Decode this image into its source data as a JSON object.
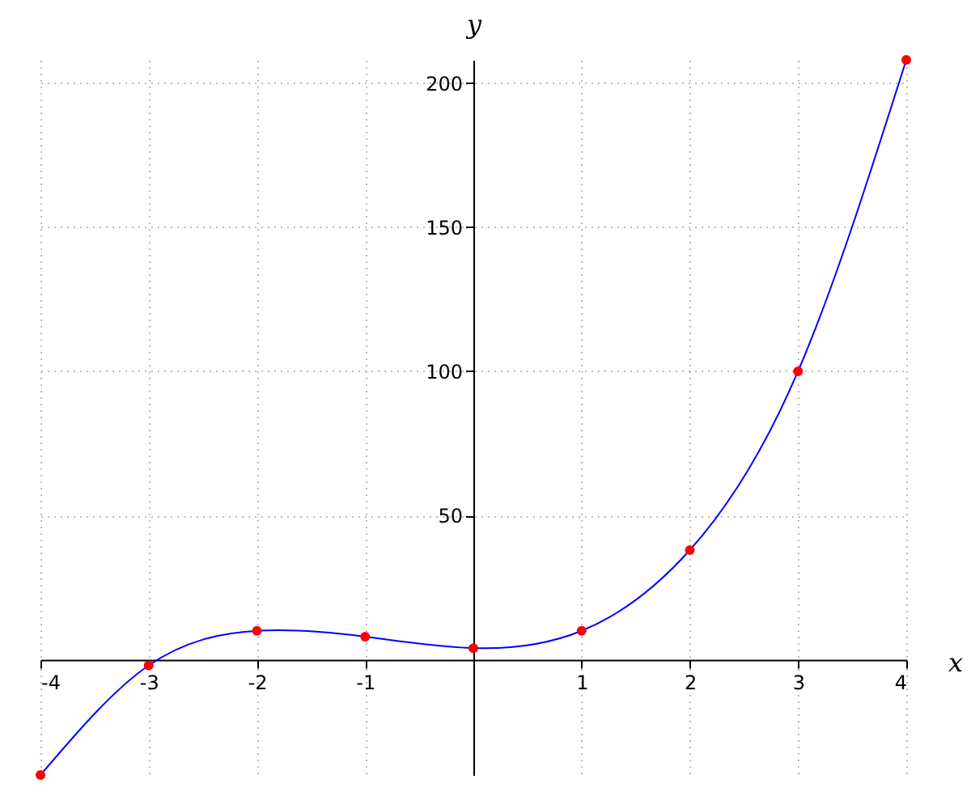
{
  "chart_data": {
    "type": "line",
    "xlabel": "x",
    "ylabel": "y",
    "x": [
      -4,
      -3,
      -2,
      -1,
      0,
      1,
      2,
      3,
      4
    ],
    "series": [
      {
        "type": "line",
        "color": "#0000ff",
        "values": [
          -40,
          -2,
          10,
          8,
          4,
          10,
          38,
          100,
          208
        ]
      },
      {
        "type": "scatter",
        "color": "#ff0000",
        "marker": "circle",
        "values": [
          -40,
          -2,
          10,
          8,
          4,
          10,
          38,
          100,
          208
        ]
      }
    ],
    "xlim": [
      -4,
      4
    ],
    "ylim": [
      -40,
      208
    ],
    "xticks": [
      -4,
      -3,
      -2,
      -1,
      1,
      2,
      3,
      4
    ],
    "yticks": [
      50,
      100,
      150,
      200
    ],
    "grid": true
  }
}
